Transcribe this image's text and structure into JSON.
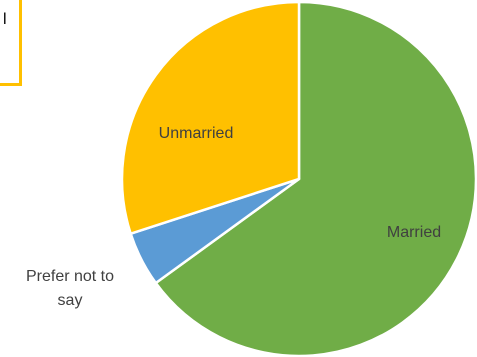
{
  "legend_fragment": {
    "text": "l",
    "border_color": "#ffc000"
  },
  "chart_data": {
    "type": "pie",
    "categories": [
      "Married",
      "Prefer not to say",
      "Unmarried"
    ],
    "values": [
      65,
      5,
      30
    ],
    "colors": [
      "#70ad47",
      "#5b9bd5",
      "#ffc000"
    ],
    "labels": [
      "Married",
      "Prefer not to say",
      "Unmarried"
    ],
    "label_positions": [
      "inside",
      "outside",
      "inside"
    ],
    "start": "12 o'clock",
    "direction": "clockwise"
  }
}
